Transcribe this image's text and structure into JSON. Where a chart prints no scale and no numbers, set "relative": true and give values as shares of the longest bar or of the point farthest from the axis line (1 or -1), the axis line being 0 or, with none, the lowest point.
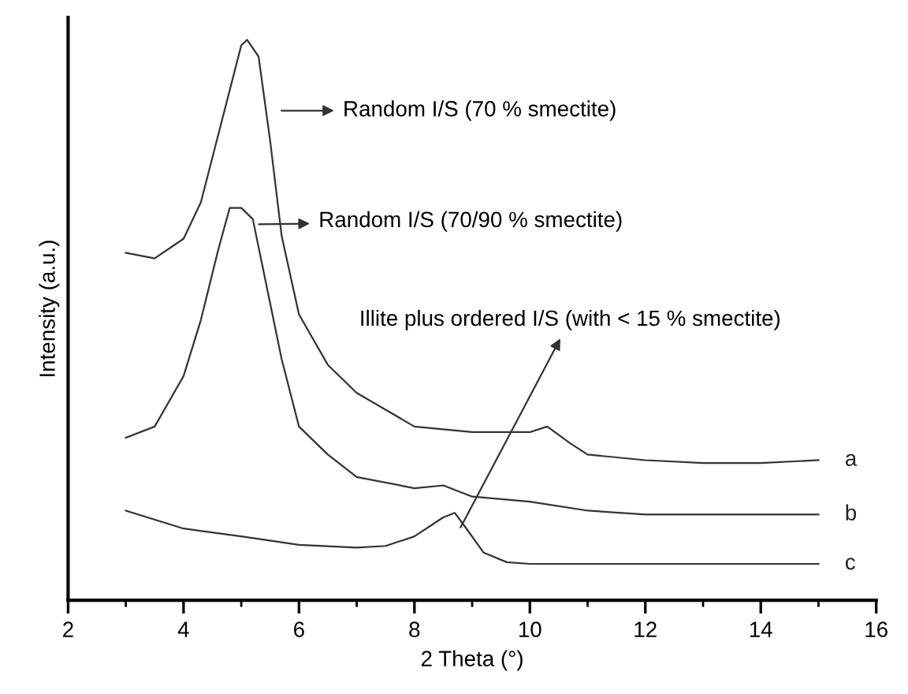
{
  "chart_data": {
    "type": "line",
    "xlabel": "2 Theta (°)",
    "ylabel": "Intensity (a.u.)",
    "relative": true,
    "tick_labels": "x",
    "xlim": [
      2,
      16
    ],
    "xticks": [
      2,
      4,
      6,
      8,
      10,
      12,
      14,
      16
    ],
    "grid": false,
    "legend": false,
    "marker": "none",
    "line_style": "solid",
    "series": [
      {
        "name": "a",
        "color": "#333333",
        "x": [
          3.0,
          3.5,
          4.0,
          4.3,
          4.5,
          4.8,
          5.0,
          5.1,
          5.3,
          5.5,
          5.7,
          6.0,
          6.5,
          7.0,
          7.5,
          8.0,
          9.0,
          10.0,
          10.3,
          10.7,
          11.0,
          12.0,
          13.0,
          14.0,
          15.0
        ],
        "values": [
          0.62,
          0.61,
          0.645,
          0.71,
          0.79,
          0.91,
          0.99,
          1.0,
          0.97,
          0.82,
          0.65,
          0.51,
          0.42,
          0.37,
          0.34,
          0.31,
          0.3,
          0.3,
          0.31,
          0.28,
          0.26,
          0.25,
          0.245,
          0.245,
          0.25
        ]
      },
      {
        "name": "b",
        "color": "#333333",
        "x": [
          3.0,
          3.5,
          4.0,
          4.3,
          4.6,
          4.8,
          5.0,
          5.2,
          5.4,
          5.7,
          6.0,
          6.5,
          7.0,
          8.0,
          8.5,
          9.0,
          10.0,
          11.0,
          12.0,
          13.0,
          15.0
        ],
        "values": [
          0.29,
          0.31,
          0.4,
          0.5,
          0.625,
          0.7,
          0.7,
          0.68,
          0.58,
          0.43,
          0.31,
          0.26,
          0.22,
          0.2,
          0.205,
          0.185,
          0.176,
          0.16,
          0.153,
          0.153,
          0.153
        ]
      },
      {
        "name": "c",
        "color": "#333333",
        "x": [
          3.0,
          4.0,
          5.0,
          6.0,
          7.0,
          7.5,
          8.0,
          8.5,
          8.7,
          8.9,
          9.2,
          9.6,
          10.0,
          12.0,
          15.0
        ],
        "values": [
          0.16,
          0.128,
          0.114,
          0.099,
          0.094,
          0.097,
          0.114,
          0.148,
          0.156,
          0.128,
          0.085,
          0.068,
          0.065,
          0.065,
          0.065
        ]
      }
    ],
    "annotations": [
      "Random I/S (70 % smectite)",
      "Random I/S (70/90 % smectite)",
      {
        "text": "Illite plus ordered I/S (with < 15 % smectite)",
        "x": 8.8,
        "y": 0.13
      }
    ]
  }
}
